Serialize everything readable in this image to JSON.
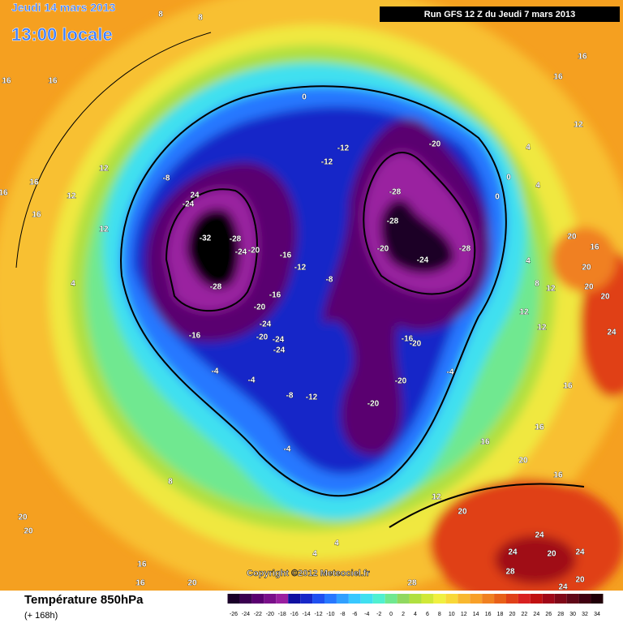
{
  "header": {
    "date": "Jeudi 14 mars 2013",
    "time": "13:00 locale",
    "run": "Run GFS 12 Z du Jeudi 7 mars 2013"
  },
  "copyright": "Copyright ©2012 Meteociel.fr",
  "footer": {
    "title": "Température 850hPa",
    "lead": "(+ 168h)"
  },
  "colorbar": {
    "ticks": [
      -26,
      -24,
      -22,
      -20,
      -18,
      -16,
      -14,
      -12,
      -10,
      -8,
      -6,
      -4,
      -2,
      0,
      2,
      4,
      6,
      8,
      10,
      12,
      14,
      16,
      18,
      20,
      22,
      24,
      26,
      28,
      30,
      32,
      34
    ],
    "colors": [
      "#1a0028",
      "#3a0050",
      "#5a0070",
      "#7a108a",
      "#9a20a0",
      "#1010a0",
      "#1828c8",
      "#2050f0",
      "#2878ff",
      "#30a0ff",
      "#38c8ff",
      "#40e0f0",
      "#50f0d0",
      "#70e890",
      "#90d860",
      "#b0e040",
      "#d0e838",
      "#f0f040",
      "#f8d838",
      "#f8b830",
      "#f8a028",
      "#f08020",
      "#e86018",
      "#e04018",
      "#d82020",
      "#c01010",
      "#a00818",
      "#800818",
      "#600818",
      "#400010",
      "#200008"
    ]
  },
  "map": {
    "labels": [
      8,
      8,
      16,
      16,
      12,
      16,
      16,
      12,
      16,
      12,
      4,
      0,
      -12,
      -12,
      -20,
      -8,
      24,
      -24,
      -28,
      -28,
      -32,
      -28,
      -20,
      -24,
      -16,
      -12,
      -8,
      -20,
      -24,
      -28,
      -28,
      -16,
      -20,
      -16,
      -24,
      -20,
      -24,
      -24,
      -16,
      -20,
      -4,
      -4,
      -20,
      -4,
      -8,
      -12,
      -20,
      -4,
      8,
      4,
      0,
      4,
      0,
      4,
      8,
      12,
      12,
      16,
      16,
      12,
      16,
      16,
      16,
      20,
      16,
      12,
      20,
      24,
      24,
      20,
      24,
      28,
      24,
      20,
      28,
      4,
      4,
      20,
      20,
      16,
      16,
      20,
      20,
      16,
      20,
      20,
      20,
      24,
      12
    ]
  }
}
